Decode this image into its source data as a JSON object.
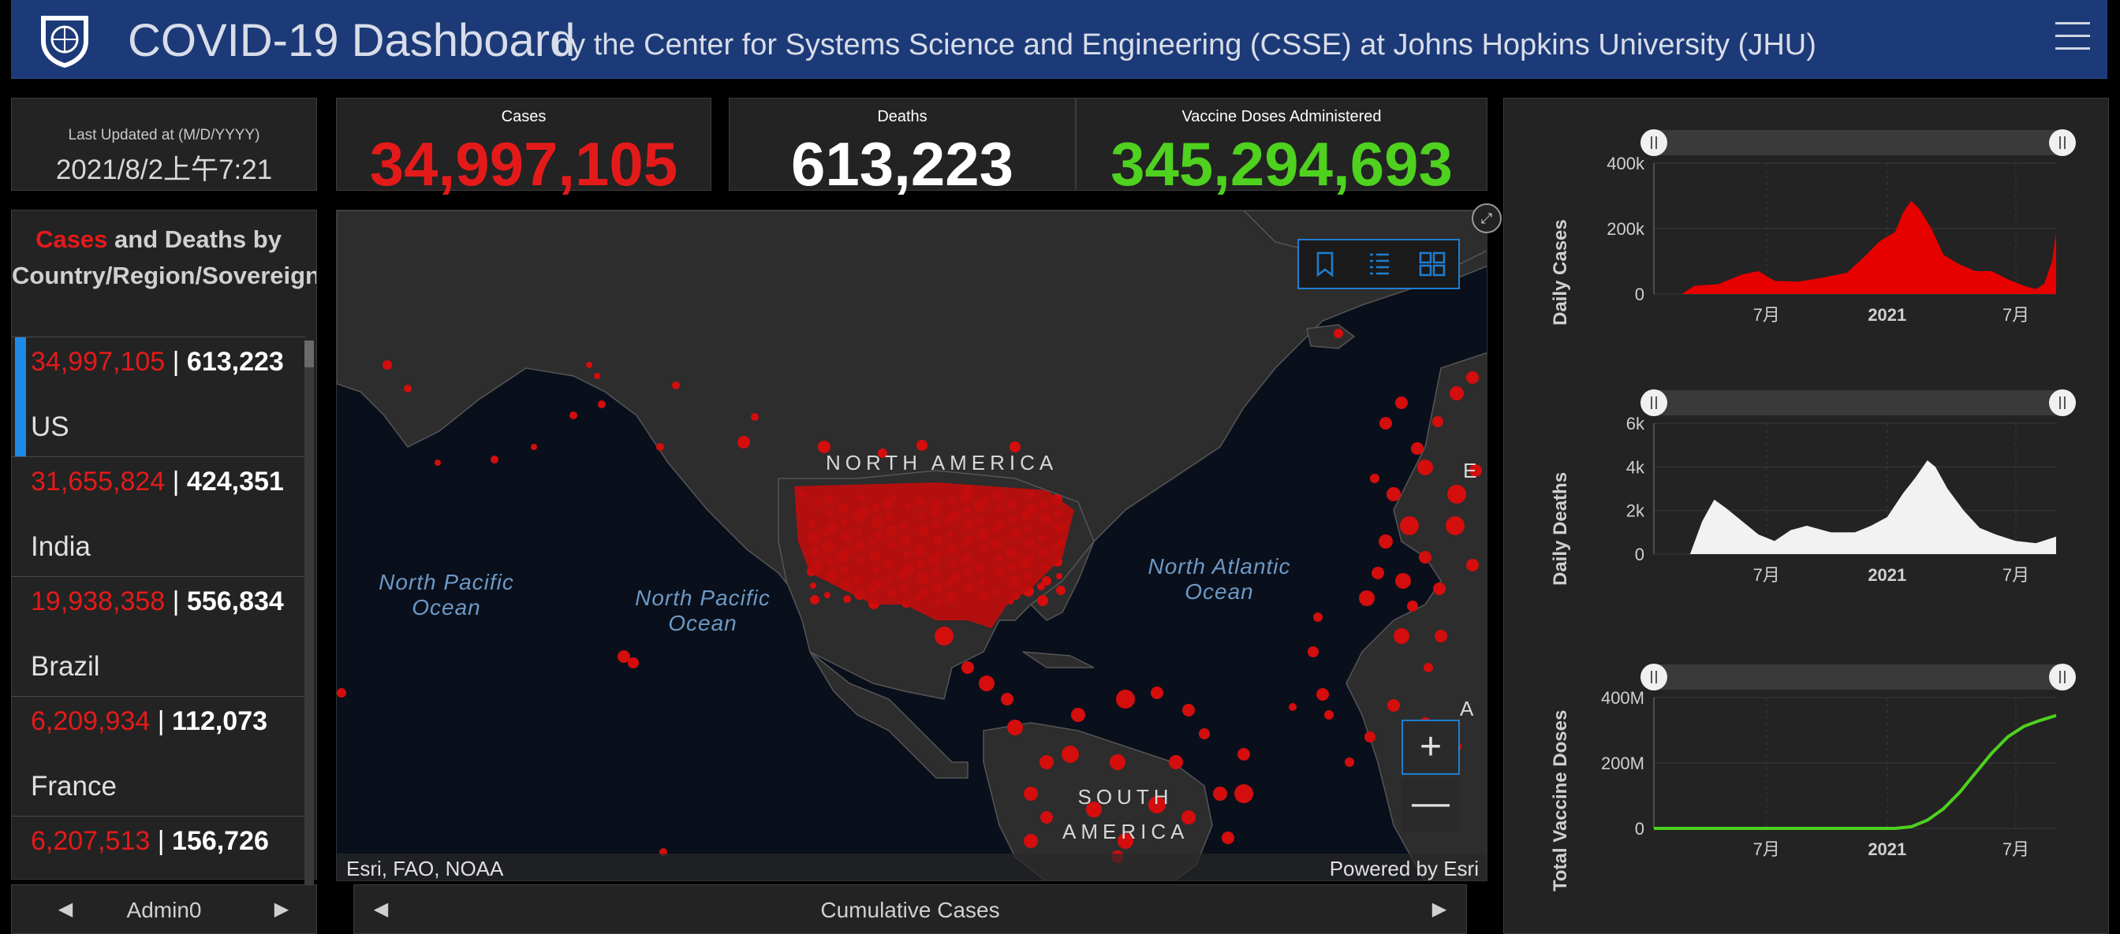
{
  "header": {
    "title": "COVID-19 Dashboard",
    "subtitle": "by the Center for Systems Science and Engineering (CSSE) at Johns Hopkins University (JHU)",
    "logo_icon": "jhu-shield-icon",
    "menu_icon": "hamburger-menu-icon"
  },
  "last_updated": {
    "label": "Last Updated at (M/D/YYYY)",
    "value": "2021/8/2上午7:21"
  },
  "stats": {
    "cases": {
      "label": "Cases",
      "value": "34,997,105",
      "color": "#e41a1a"
    },
    "deaths": {
      "label": "Deaths",
      "value": "613,223",
      "color": "#ffffff"
    },
    "vaccines": {
      "label": "Vaccine Doses Administered",
      "value": "345,294,693",
      "color": "#4ed11f"
    }
  },
  "list": {
    "title_cases": "Cases",
    "title_and": " and ",
    "title_deaths": "Deaths",
    "title_rest": " by Country/Region/Sovereignty",
    "rows": [
      {
        "cases": "34,997,105",
        "sep": " | ",
        "deaths": "613,223",
        "country": "US"
      },
      {
        "cases": "31,655,824",
        "sep": " | ",
        "deaths": "424,351",
        "country": "India"
      },
      {
        "cases": "19,938,358",
        "sep": " | ",
        "deaths": "556,834",
        "country": "Brazil"
      },
      {
        "cases": "6,209,934",
        "sep": " | ",
        "deaths": "112,073",
        "country": "France"
      },
      {
        "cases": "6,207,513",
        "sep": " | ",
        "deaths": "156,726",
        "country": ""
      }
    ],
    "footer_label": "Admin0"
  },
  "map": {
    "labels": {
      "north_america": "NORTH AMERICA",
      "south_america": "SOUTH AMERICA",
      "north_pacific_1": "North Pacific Ocean",
      "north_pacific_2": "North Pacific Ocean",
      "north_atlantic": "North Atlantic Ocean",
      "edge_e": "E",
      "edge_a": "A"
    },
    "attribution_left": "Esri, FAO, NOAA",
    "attribution_right": "Powered by Esri",
    "footer_label": "Cumulative Cases",
    "tools": [
      "bookmark-icon",
      "legend-list-icon",
      "basemap-gallery-icon"
    ],
    "zoom_in": "+",
    "zoom_out": "—",
    "colors": {
      "ocean": "#09101c",
      "land": "#2d2d2d",
      "dot": "#d40d0d"
    }
  },
  "chart_data": [
    {
      "type": "area",
      "ylabel": "Daily Cases",
      "yticks": [
        "400k",
        "200k",
        "0"
      ],
      "ylim": [
        0,
        400000
      ],
      "xticks": [
        "7月",
        "2021",
        "7月"
      ],
      "color": "#e60000",
      "series_shape": [
        [
          0.0,
          0
        ],
        [
          0.07,
          0
        ],
        [
          0.1,
          25000
        ],
        [
          0.16,
          30000
        ],
        [
          0.22,
          60000
        ],
        [
          0.26,
          70000
        ],
        [
          0.3,
          40000
        ],
        [
          0.36,
          38000
        ],
        [
          0.42,
          50000
        ],
        [
          0.48,
          65000
        ],
        [
          0.52,
          110000
        ],
        [
          0.56,
          160000
        ],
        [
          0.6,
          190000
        ],
        [
          0.62,
          250000
        ],
        [
          0.64,
          285000
        ],
        [
          0.66,
          260000
        ],
        [
          0.69,
          200000
        ],
        [
          0.72,
          120000
        ],
        [
          0.76,
          90000
        ],
        [
          0.8,
          70000
        ],
        [
          0.84,
          70000
        ],
        [
          0.88,
          45000
        ],
        [
          0.92,
          25000
        ],
        [
          0.95,
          15000
        ],
        [
          0.97,
          30000
        ],
        [
          0.99,
          100000
        ],
        [
          1.0,
          190000
        ]
      ]
    },
    {
      "type": "bar",
      "ylabel": "Daily Deaths",
      "yticks": [
        "6k",
        "4k",
        "2k",
        "0"
      ],
      "ylim": [
        0,
        6000
      ],
      "xticks": [
        "7月",
        "2021",
        "7月"
      ],
      "color": "#f2f2f2",
      "series_shape": [
        [
          0.0,
          0
        ],
        [
          0.09,
          0
        ],
        [
          0.12,
          1500
        ],
        [
          0.15,
          2500
        ],
        [
          0.18,
          2100
        ],
        [
          0.22,
          1500
        ],
        [
          0.26,
          900
        ],
        [
          0.3,
          600
        ],
        [
          0.34,
          1100
        ],
        [
          0.38,
          1300
        ],
        [
          0.44,
          1000
        ],
        [
          0.5,
          1000
        ],
        [
          0.54,
          1300
        ],
        [
          0.58,
          1700
        ],
        [
          0.62,
          2800
        ],
        [
          0.65,
          3500
        ],
        [
          0.68,
          4300
        ],
        [
          0.7,
          4000
        ],
        [
          0.73,
          3000
        ],
        [
          0.77,
          2000
        ],
        [
          0.81,
          1200
        ],
        [
          0.85,
          900
        ],
        [
          0.9,
          600
        ],
        [
          0.95,
          500
        ],
        [
          1.0,
          800
        ]
      ]
    },
    {
      "type": "line",
      "ylabel": "Total Vaccine Doses",
      "yticks": [
        "400M",
        "200M",
        "0"
      ],
      "ylim": [
        0,
        400000000
      ],
      "xticks": [
        "7月",
        "2021",
        "7月"
      ],
      "color": "#4ed11f",
      "series_shape": [
        [
          0.0,
          0
        ],
        [
          0.6,
          0
        ],
        [
          0.64,
          5000000
        ],
        [
          0.68,
          25000000
        ],
        [
          0.72,
          60000000
        ],
        [
          0.76,
          110000000
        ],
        [
          0.8,
          170000000
        ],
        [
          0.84,
          230000000
        ],
        [
          0.88,
          280000000
        ],
        [
          0.92,
          312000000
        ],
        [
          0.96,
          330000000
        ],
        [
          1.0,
          345000000
        ]
      ]
    }
  ]
}
